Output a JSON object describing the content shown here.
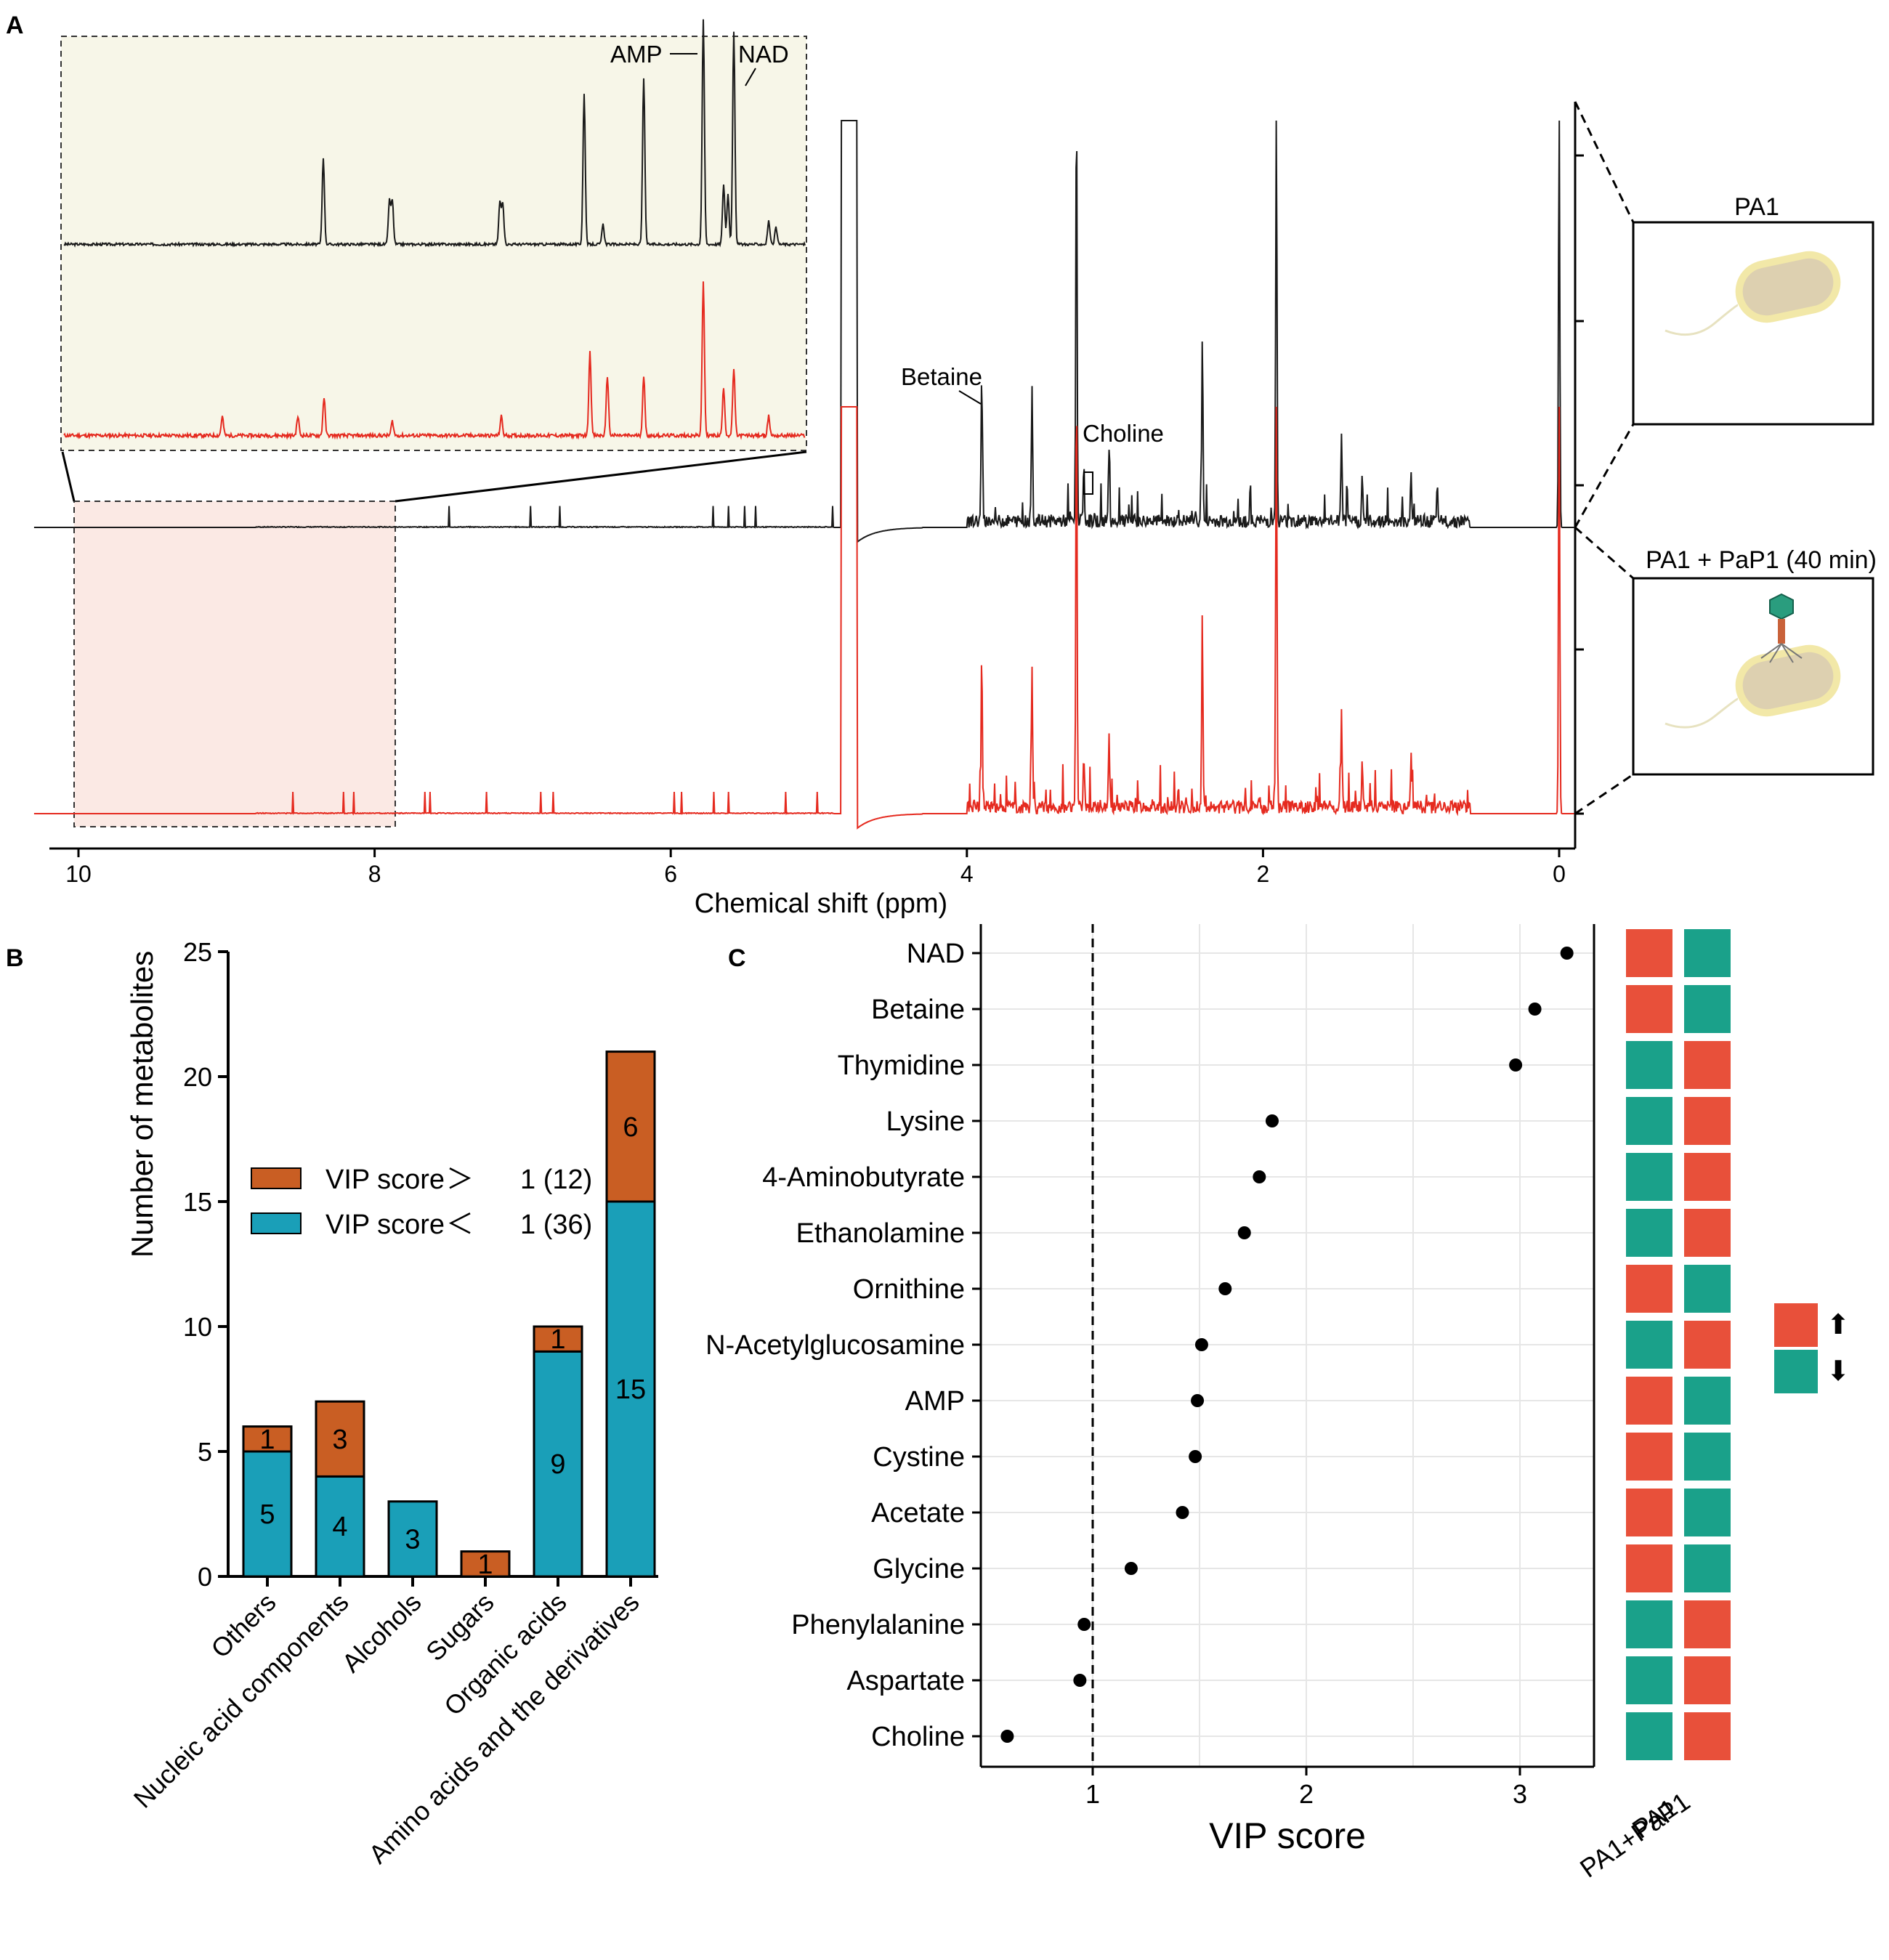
{
  "colors": {
    "black_trace": "#1a1a1a",
    "red_trace": "#e52a1f",
    "inset_bg": "#f7f6e8",
    "zoom_bg": "#fbe9e4",
    "bar_low": "#1a9fb8",
    "bar_high": "#c95e23",
    "tile_red": "#e8503a",
    "tile_green": "#1aa18a",
    "dot": "#000000"
  },
  "chart_data": [
    {
      "panel": "A",
      "type": "line",
      "title": "",
      "xlabel": "Chemical shift (ppm)",
      "xlim": [
        10.2,
        -0.1
      ],
      "x_ticks": [
        "10",
        "8",
        "6",
        "4",
        "2",
        "0"
      ],
      "series": [
        {
          "name": "PA1",
          "color": "black"
        },
        {
          "name": "PA1 + PaP1 (40 min)",
          "color": "red"
        }
      ],
      "annotations": [
        "AMP",
        "NAD",
        "Betaine",
        "Choline"
      ],
      "peaks_ppm": [
        {
          "x": 4.8,
          "h": 1.0
        },
        {
          "x": 3.26,
          "h": 1.0
        },
        {
          "x": 3.9,
          "h": 0.34
        },
        {
          "x": 3.56,
          "h": 0.33
        },
        {
          "x": 3.21,
          "h": 0.12
        },
        {
          "x": 3.04,
          "h": 0.18
        },
        {
          "x": 2.41,
          "h": 0.44
        },
        {
          "x": 1.91,
          "h": 1.0
        },
        {
          "x": 1.47,
          "h": 0.21
        },
        {
          "x": 1.33,
          "h": 0.1
        },
        {
          "x": 1.0,
          "h": 0.12
        },
        {
          "x": 0.0,
          "h": 1.0
        }
      ],
      "boxes": [
        "PA1",
        "PA1 + PaP1 (40 min)"
      ]
    },
    {
      "panel": "B",
      "type": "bar",
      "stacked": true,
      "title": "",
      "ylabel": "Number of metabolites",
      "xlabel": "",
      "ylim": [
        0,
        25
      ],
      "y_ticks": [
        "0",
        "5",
        "10",
        "15",
        "20",
        "25"
      ],
      "categories": [
        "Others",
        "Nucleic acid components",
        "Alcohols",
        "Sugars",
        "Organic acids",
        "Amino acids and the derivatives"
      ],
      "series": [
        {
          "name": "VIP score < 1 (36)",
          "values": [
            5,
            4,
            3,
            0,
            9,
            15
          ]
        },
        {
          "name": "VIP score > 1 (12)",
          "values": [
            1,
            3,
            0,
            1,
            1,
            6
          ]
        }
      ],
      "legend": [
        {
          "key": "VIP score",
          "sym": "＞",
          "rest": "1 (12)"
        },
        {
          "key": "VIP score",
          "sym": "＜",
          "rest": "1 (36)"
        }
      ],
      "legend_position": "middle-left"
    },
    {
      "panel": "C",
      "type": "scatter",
      "title": "",
      "xlabel": "VIP score",
      "xlim": [
        0.55,
        3.35
      ],
      "x_ticks": [
        "1",
        "2",
        "3"
      ],
      "reference_line": 1,
      "categories": [
        "NAD",
        "Betaine",
        "Thymidine",
        "Lysine",
        "4-Aminobutyrate",
        "Ethanolamine",
        "Ornithine",
        "N-Acetylglucosamine",
        "AMP",
        "Cystine",
        "Acetate",
        "Glycine",
        "Phenylalanine",
        "Aspartate",
        "Choline"
      ],
      "values": [
        3.22,
        3.07,
        2.98,
        1.84,
        1.78,
        1.71,
        1.62,
        1.51,
        1.49,
        1.48,
        1.42,
        1.18,
        0.96,
        0.94,
        0.6
      ],
      "heatmap_columns": [
        "PA1",
        "PA1+PaP1"
      ],
      "heatmap_PA1": [
        "up",
        "up",
        "down",
        "down",
        "down",
        "down",
        "up",
        "down",
        "up",
        "up",
        "up",
        "up",
        "down",
        "down",
        "down"
      ],
      "legend": {
        "up": "⬆",
        "down": "⬇"
      }
    }
  ]
}
